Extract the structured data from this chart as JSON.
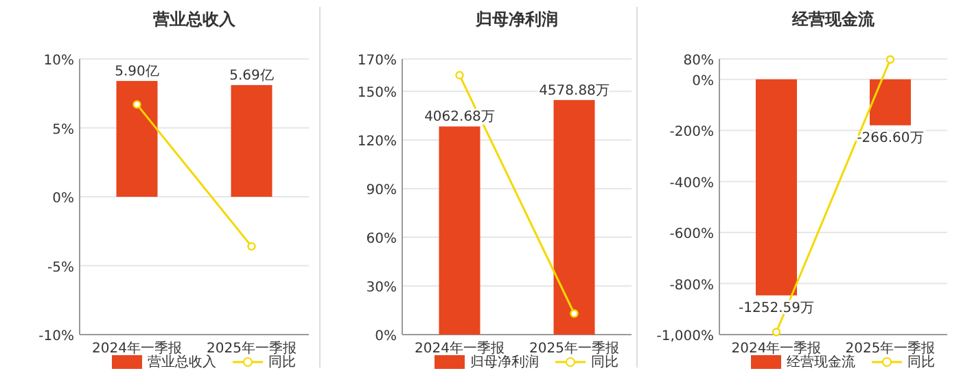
{
  "chart_data": [
    {
      "type": "bar",
      "title": "营业总收入",
      "categories": [
        "2024年一季报",
        "2025年一季报"
      ],
      "ylim": [
        -10,
        10
      ],
      "yticks": [
        {
          "value": -10,
          "label": "-10%"
        },
        {
          "value": -5,
          "label": "-5%"
        },
        {
          "value": 0,
          "label": "0%"
        },
        {
          "value": 5,
          "label": "5%"
        },
        {
          "value": 10,
          "label": "10%"
        }
      ],
      "y2lim": [
        -7.02,
        7.02
      ],
      "grid": "y",
      "legend": "bottom",
      "series": [
        {
          "name": "营业总收入",
          "axis": "y2",
          "color": "#e8461e",
          "values": [
            5.9,
            5.69
          ],
          "value_labels": [
            "5.90亿",
            "5.69亿"
          ]
        },
        {
          "name": "同比",
          "type": "line",
          "color": "#f5d800",
          "marker": "circle",
          "values": [
            6.7,
            -3.6
          ]
        }
      ]
    },
    {
      "type": "bar",
      "title": "归母净利润",
      "categories": [
        "2024年一季报",
        "2025年一季报"
      ],
      "ylim": [
        0,
        170
      ],
      "yticks": [
        {
          "value": 0,
          "label": "0%"
        },
        {
          "value": 30,
          "label": "30%"
        },
        {
          "value": 60,
          "label": "60%"
        },
        {
          "value": 90,
          "label": "90%"
        },
        {
          "value": 120,
          "label": "120%"
        },
        {
          "value": 150,
          "label": "150%"
        },
        {
          "value": 170,
          "label": "170%"
        }
      ],
      "y2lim": [
        0,
        5380
      ],
      "grid": "y",
      "legend": "bottom",
      "series": [
        {
          "name": "归母净利润",
          "axis": "y2",
          "color": "#e8461e",
          "values": [
            4062.68,
            4578.88
          ],
          "value_labels": [
            "4062.68万",
            "4578.88万"
          ]
        },
        {
          "name": "同比",
          "type": "line",
          "color": "#f5d800",
          "marker": "circle",
          "values": [
            160,
            13
          ]
        }
      ]
    },
    {
      "type": "bar",
      "title": "经营现金流",
      "categories": [
        "2024年一季报",
        "2025年一季报"
      ],
      "ylim": [
        -1000,
        80
      ],
      "yticks": [
        {
          "value": -1000,
          "label": "-1,000%"
        },
        {
          "value": -800,
          "label": "-800%"
        },
        {
          "value": -600,
          "label": "-600%"
        },
        {
          "value": -400,
          "label": "-400%"
        },
        {
          "value": -200,
          "label": "-200%"
        },
        {
          "value": 0,
          "label": "0%"
        },
        {
          "value": 80,
          "label": "80%"
        }
      ],
      "y2lim": [
        -1480,
        118
      ],
      "grid": "y",
      "legend": "bottom",
      "series": [
        {
          "name": "经营现金流",
          "axis": "y2",
          "color": "#e8461e",
          "values": [
            -1252.59,
            -266.6
          ],
          "value_labels": [
            "-1252.59万",
            "-266.60万"
          ]
        },
        {
          "name": "同比",
          "type": "line",
          "color": "#f5d800",
          "marker": "circle",
          "values": [
            -990,
            78
          ]
        }
      ]
    }
  ]
}
